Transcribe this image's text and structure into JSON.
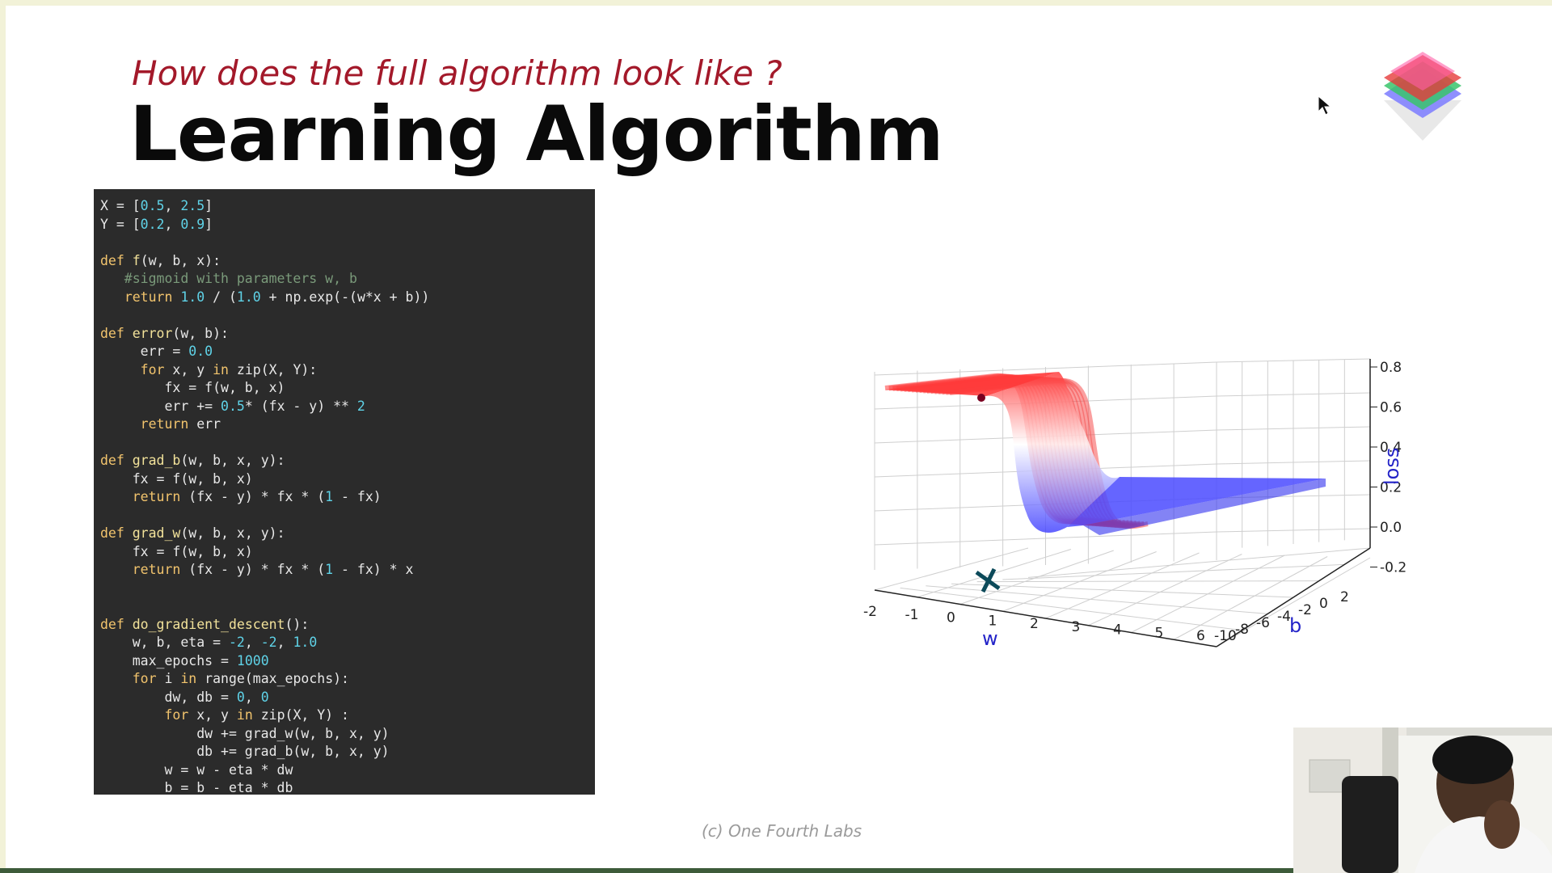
{
  "slide": {
    "subtitle": "How does the full algorithm look like ?",
    "title": "Learning Algorithm",
    "footer": "(c) One Fourth Labs"
  },
  "code": {
    "lines": [
      "X = [0.5, 2.5]",
      "Y = [0.2, 0.9]",
      "",
      "def f(w, b, x):",
      "   #sigmoid with parameters w, b",
      "   return 1.0 / (1.0 + np.exp(-(w*x + b))",
      "",
      "def error(w, b):",
      "     err = 0.0",
      "     for x, y in zip(X, Y):",
      "        fx = f(w, b, x)",
      "        err += 0.5* (fx - y) ** 2",
      "     return err",
      "",
      "def grad_b(w, b, x, y):",
      "    fx = f(w, b, x)",
      "    return (fx - y) * fx * (1 - fx)",
      "",
      "def grad_w(w, b, x, y):",
      "    fx = f(w, b, x)",
      "    return (fx - y) * fx * (1 - fx) * x",
      "",
      "",
      "def do_gradient_descent():",
      "    w, b, eta = -2, -2, 1.0",
      "    max_epochs = 1000",
      "    for i in range(max_epochs):",
      "        dw, db = 0, 0",
      "        for x, y in zip(X, Y) :",
      "            dw += grad_w(w, b, x, y)",
      "            db += grad_b(w, b, x, y)",
      "        w = w - eta * dw",
      "        b = b - eta * db"
    ]
  },
  "plot": {
    "w_label": "w",
    "b_label": "b",
    "loss_label": "loss",
    "w_ticks": [
      "-2",
      "-1",
      "0",
      "1",
      "2",
      "3",
      "4",
      "5",
      "6"
    ],
    "b_ticks": [
      "-10",
      "-8",
      "-6",
      "-4",
      "-2",
      "0",
      "2"
    ],
    "loss_ticks": [
      "0.8",
      "0.6",
      "0.4",
      "0.2",
      "0.0",
      "-0.2"
    ],
    "colors": {
      "high": "#ff2a2a",
      "low": "#2a2aff",
      "label": "#2323c8"
    }
  },
  "icons": {
    "logo": "layered-diamond-logo",
    "cursor": "mouse-pointer-icon"
  }
}
